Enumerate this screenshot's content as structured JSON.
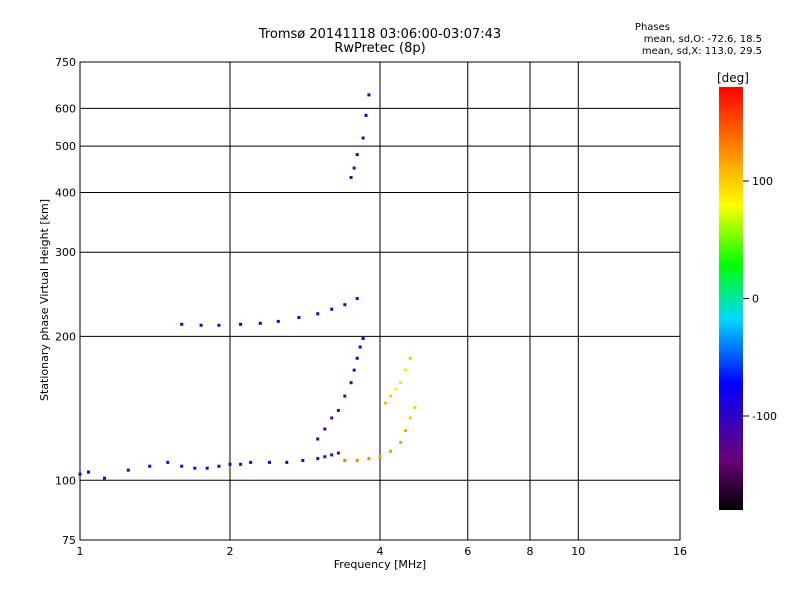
{
  "title_line1": "Tromsø 20141118 03:06:00-03:07:43",
  "title_line2": "RwPretec (8p)",
  "phase_box": {
    "heading": "Phases",
    "line_o": "mean, sd,O: -72.6, 18.5",
    "line_x": "mean, sd,X: 113.0, 29.5"
  },
  "chart_data": {
    "type": "scatter",
    "xlabel": "Frequency [MHz]",
    "ylabel": "Stationary phase Virtual Height [km]",
    "x_scale": "log",
    "y_scale": "log",
    "xlim": [
      1,
      16
    ],
    "ylim": [
      75,
      750
    ],
    "x_ticks": [
      1,
      2,
      4,
      6,
      8,
      10,
      16
    ],
    "y_ticks": [
      75,
      100,
      200,
      300,
      400,
      500,
      600,
      750
    ],
    "x_grid": [
      2,
      4,
      6,
      8,
      10
    ],
    "y_grid": [
      100,
      200,
      300,
      400,
      500,
      600
    ],
    "colorbar": {
      "label": "[deg]",
      "range": [
        -180,
        180
      ],
      "ticks": [
        100,
        0,
        -100
      ],
      "colors": [
        "#000000",
        "#6a007a",
        "#0000ff",
        "#00d8ff",
        "#00ff00",
        "#ffff00",
        "#ff8000",
        "#ff0000"
      ]
    },
    "series": [
      {
        "x": [
          1.0,
          1.04,
          1.12,
          1.25,
          1.38,
          1.5,
          1.6,
          1.7,
          1.8,
          1.9,
          2.0,
          2.1,
          2.2,
          2.4,
          2.6,
          2.8,
          3.0,
          3.1,
          3.2,
          3.3
        ],
        "y": [
          103,
          104,
          101,
          105,
          107,
          109,
          107,
          106,
          106,
          107,
          108,
          108,
          109,
          109,
          109,
          110,
          111,
          112,
          113,
          114
        ],
        "phase": [
          -82,
          -80,
          -78,
          -80,
          -75,
          -80,
          -98,
          -104,
          -92,
          -95,
          -98,
          -98,
          -88,
          -86,
          -84,
          -92,
          -100,
          -106,
          -108,
          -110
        ]
      },
      {
        "x": [
          3.0,
          3.1,
          3.2,
          3.3,
          3.4,
          3.5,
          3.55,
          3.6,
          3.65,
          3.7
        ],
        "y": [
          122,
          128,
          135,
          140,
          150,
          160,
          170,
          180,
          190,
          198
        ],
        "phase": [
          -105,
          -108,
          -110,
          -110,
          -112,
          -104,
          -98,
          -84,
          -80,
          -78
        ]
      },
      {
        "x": [
          1.6,
          1.75,
          1.9,
          2.1,
          2.3,
          2.5,
          2.75,
          3.0,
          3.2,
          3.4,
          3.6
        ],
        "y": [
          212,
          211,
          211,
          212,
          213,
          215,
          219,
          223,
          228,
          233,
          240
        ],
        "phase": [
          -82,
          -80,
          -82,
          -80,
          -80,
          -78,
          -80,
          -82,
          -105,
          -108,
          -110
        ]
      },
      {
        "x": [
          3.5,
          3.55,
          3.6,
          3.7,
          3.75,
          3.8
        ],
        "y": [
          430,
          450,
          480,
          520,
          580,
          640
        ],
        "phase": [
          -105,
          -108,
          -100,
          -88,
          -80,
          -78
        ]
      },
      {
        "x": [
          3.4,
          3.6,
          3.8,
          4.0,
          4.2,
          4.4,
          4.5,
          4.6,
          4.7
        ],
        "y": [
          110,
          110,
          111,
          112,
          115,
          120,
          127,
          135,
          142
        ],
        "phase": [
          130,
          128,
          125,
          120,
          118,
          115,
          112,
          100,
          60
        ]
      },
      {
        "x": [
          4.1,
          4.2,
          4.3,
          4.4,
          4.5,
          4.6
        ],
        "y": [
          145,
          150,
          155,
          160,
          170,
          180
        ],
        "phase": [
          110,
          100,
          80,
          90,
          70,
          55
        ]
      }
    ]
  }
}
